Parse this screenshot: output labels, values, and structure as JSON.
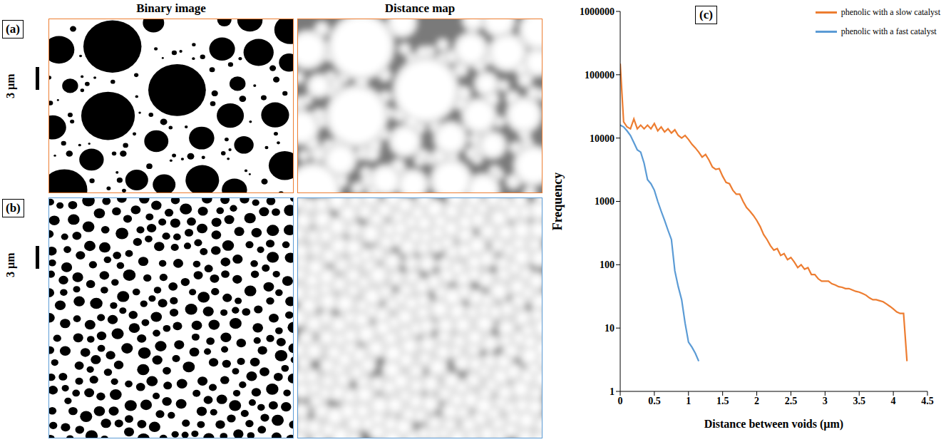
{
  "figure": {
    "column_titles": [
      "Binary image",
      "Distance map"
    ],
    "panels": [
      {
        "label": "(a)",
        "scale_bar": "3 µm"
      },
      {
        "label": "(b)",
        "scale_bar": "3 µm"
      }
    ]
  },
  "chart_data": {
    "type": "line",
    "panel_label": "(c)",
    "x_label": "Distance between voids (µm)",
    "y_label": "Frequency",
    "log": "y",
    "grid": false,
    "legend": "top-right",
    "xlim": [
      0,
      4.5
    ],
    "xticks": [
      0,
      0.5,
      1,
      1.5,
      2,
      2.5,
      3,
      3.5,
      4,
      4.5
    ],
    "ylim": [
      1,
      1000000
    ],
    "yticks": [
      1,
      10,
      100,
      1000,
      10000,
      100000,
      1000000
    ],
    "x": [
      0,
      0.05,
      0.1,
      0.15,
      0.2,
      0.25,
      0.3,
      0.35,
      0.4,
      0.45,
      0.5,
      0.55,
      0.6,
      0.65,
      0.7,
      0.75,
      0.8,
      0.85,
      0.9,
      0.95,
      1,
      1.05,
      1.1,
      1.15,
      1.2,
      1.25,
      1.3,
      1.35,
      1.4,
      1.45,
      1.5,
      1.55,
      1.6,
      1.65,
      1.7,
      1.75,
      1.8,
      1.85,
      1.9,
      1.95,
      2,
      2.05,
      2.1,
      2.15,
      2.2,
      2.25,
      2.3,
      2.35,
      2.4,
      2.45,
      2.5,
      2.55,
      2.6,
      2.65,
      2.7,
      2.75,
      2.8,
      2.85,
      2.9,
      2.95,
      3,
      3.05,
      3.1,
      3.15,
      3.2,
      3.25,
      3.3,
      3.35,
      3.4,
      3.45,
      3.5,
      3.55,
      3.6,
      3.65,
      3.7,
      3.75,
      3.8,
      3.85,
      3.9,
      3.95,
      4,
      4.05,
      4.1,
      4.15,
      4.2
    ],
    "series": [
      {
        "name": "phenolic with a slow catalyst",
        "color": "#ed7d31",
        "values": [
          150000,
          18000,
          15000,
          14000,
          20000,
          14000,
          16000,
          14000,
          16000,
          14000,
          17000,
          13000,
          15000,
          12500,
          14000,
          12000,
          13500,
          11000,
          10000,
          11000,
          9500,
          8000,
          7000,
          6000,
          5000,
          5500,
          4500,
          3500,
          3200,
          3300,
          2500,
          2000,
          1900,
          1500,
          1300,
          1300,
          1000,
          800,
          700,
          600,
          500,
          400,
          300,
          250,
          200,
          170,
          180,
          140,
          150,
          120,
          130,
          110,
          90,
          100,
          85,
          90,
          70,
          70,
          60,
          55,
          55,
          55,
          50,
          48,
          45,
          44,
          42,
          42,
          40,
          38,
          37,
          35,
          33,
          30,
          28,
          28,
          27,
          26,
          24,
          22,
          20,
          18,
          17,
          17,
          3
        ]
      },
      {
        "name": "phenolic with a fast catalyst",
        "color": "#5b9bd5",
        "values": [
          16000,
          15000,
          13000,
          11000,
          8500,
          6500,
          6000,
          4000,
          2200,
          1900,
          1500,
          1000,
          700,
          500,
          350,
          250,
          80,
          45,
          28,
          12,
          6,
          5,
          4,
          3,
          null,
          null,
          null,
          null,
          null,
          null,
          null,
          null,
          null,
          null,
          null,
          null,
          null,
          null,
          null,
          null,
          null,
          null,
          null,
          null,
          null,
          null,
          null,
          null,
          null,
          null,
          null,
          null,
          null,
          null,
          null,
          null,
          null,
          null,
          null,
          null,
          null,
          null,
          null,
          null,
          null,
          null,
          null,
          null,
          null,
          null,
          null,
          null,
          null,
          null,
          null,
          null,
          null,
          null,
          null,
          null,
          null,
          null,
          null,
          null,
          null
        ]
      }
    ]
  }
}
